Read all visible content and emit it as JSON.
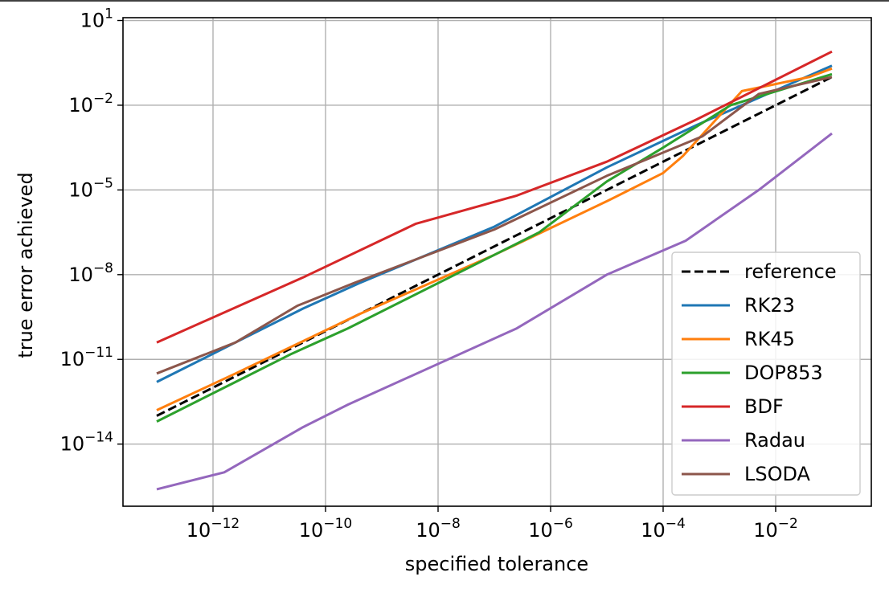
{
  "chart_data": {
    "type": "line",
    "xlabel": "specified tolerance",
    "ylabel": "true error achieved",
    "xscale": "log",
    "yscale": "log",
    "xlim_exp": [
      -13.6,
      -0.3
    ],
    "ylim_exp": [
      -16.2,
      1.1
    ],
    "x_ticks": [
      {
        "base": "10",
        "exp": "−12",
        "value": -12
      },
      {
        "base": "10",
        "exp": "−10",
        "value": -10
      },
      {
        "base": "10",
        "exp": "−8",
        "value": -8
      },
      {
        "base": "10",
        "exp": "−6",
        "value": -6
      },
      {
        "base": "10",
        "exp": "−4",
        "value": -4
      },
      {
        "base": "10",
        "exp": "−2",
        "value": -2
      }
    ],
    "y_ticks": [
      {
        "base": "10",
        "exp": "1",
        "value": 1
      },
      {
        "base": "10",
        "exp": "−2",
        "value": -2
      },
      {
        "base": "10",
        "exp": "−5",
        "value": -5
      },
      {
        "base": "10",
        "exp": "−8",
        "value": -8
      },
      {
        "base": "10",
        "exp": "−11",
        "value": -11
      },
      {
        "base": "10",
        "exp": "−14",
        "value": -14
      }
    ],
    "grid": true,
    "legend_position": "bottom-right",
    "series": [
      {
        "name": "reference",
        "color": "#000000",
        "dash": true,
        "x": [
          -13,
          -1
        ],
        "y": [
          -13,
          -1
        ]
      },
      {
        "name": "RK23",
        "color": "#1f77b4",
        "x": [
          -13,
          -11.6,
          -10.4,
          -9.4,
          -7,
          -5,
          -3.4,
          -1.8,
          -1
        ],
        "y": [
          -11.8,
          -10.4,
          -9.2,
          -8.3,
          -6.3,
          -4.2,
          -2.7,
          -1.3,
          -0.6
        ]
      },
      {
        "name": "RK45",
        "color": "#ff7f0e",
        "x": [
          -13,
          -11.6,
          -9.4,
          -7,
          -5,
          -4.0,
          -3.65,
          -2.6,
          -1.4,
          -1
        ],
        "y": [
          -12.8,
          -11.5,
          -9.4,
          -7.3,
          -5.4,
          -4.4,
          -3.8,
          -1.5,
          -1.0,
          -0.7
        ]
      },
      {
        "name": "DOP853",
        "color": "#2ca02c",
        "x": [
          -13,
          -11.6,
          -10.6,
          -9.6,
          -7,
          -6.2,
          -5,
          -4,
          -2.8,
          -1
        ],
        "y": [
          -13.2,
          -11.8,
          -10.8,
          -9.9,
          -7.3,
          -6.5,
          -4.7,
          -3.5,
          -2.0,
          -0.9
        ]
      },
      {
        "name": "BDF",
        "color": "#d62728",
        "x": [
          -13,
          -10.4,
          -8.4,
          -6.6,
          -5,
          -3.4,
          -1
        ],
        "y": [
          -10.4,
          -8.1,
          -6.2,
          -5.2,
          -4.0,
          -2.5,
          -0.1
        ]
      },
      {
        "name": "Radau",
        "color": "#9467bd",
        "x": [
          -13,
          -11.8,
          -10.4,
          -9.6,
          -6.6,
          -5,
          -3.6,
          -2.3,
          -1
        ],
        "y": [
          -15.6,
          -15.0,
          -13.4,
          -12.6,
          -9.9,
          -8.0,
          -6.8,
          -5.0,
          -3.0
        ]
      },
      {
        "name": "LSODA",
        "color": "#8c564b",
        "x": [
          -13,
          -11.6,
          -10.5,
          -9.5,
          -7,
          -5,
          -3.3,
          -2.3,
          -1
        ],
        "y": [
          -11.5,
          -10.4,
          -9.1,
          -8.3,
          -6.4,
          -4.5,
          -3.1,
          -1.6,
          -1.0
        ]
      }
    ]
  }
}
